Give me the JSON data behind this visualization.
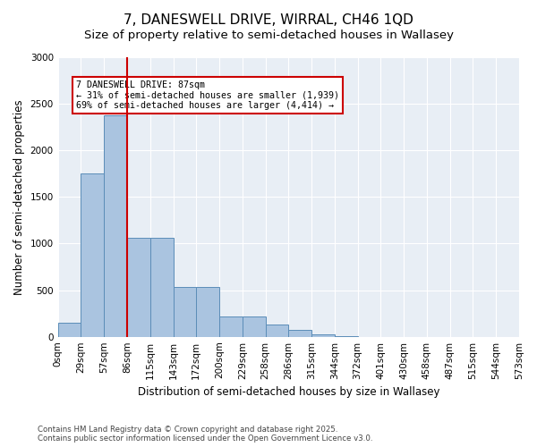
{
  "title_line1": "7, DANESWELL DRIVE, WIRRAL, CH46 1QD",
  "title_line2": "Size of property relative to semi-detached houses in Wallasey",
  "xlabel": "Distribution of semi-detached houses by size in Wallasey",
  "ylabel": "Number of semi-detached properties",
  "bin_labels": [
    "0sqm",
    "29sqm",
    "57sqm",
    "86sqm",
    "115sqm",
    "143sqm",
    "172sqm",
    "200sqm",
    "229sqm",
    "258sqm",
    "286sqm",
    "315sqm",
    "344sqm",
    "372sqm",
    "401sqm",
    "430sqm",
    "458sqm",
    "487sqm",
    "515sqm",
    "544sqm",
    "573sqm"
  ],
  "bar_values": [
    155,
    1750,
    2380,
    1060,
    1060,
    530,
    530,
    220,
    220,
    130,
    75,
    30,
    10,
    0,
    0,
    0,
    0,
    0,
    0,
    0
  ],
  "bar_color": "#aac4e0",
  "bar_edge_color": "#5b8db8",
  "property_line_x": 3,
  "property_size": "87sqm",
  "annotation_text": "7 DANESWELL DRIVE: 87sqm\n← 31% of semi-detached houses are smaller (1,939)\n69% of semi-detached houses are larger (4,414) →",
  "annotation_box_color": "#ffffff",
  "annotation_box_edge": "#cc0000",
  "vline_color": "#cc0000",
  "ylim": [
    0,
    3000
  ],
  "yticks": [
    0,
    500,
    1000,
    1500,
    2000,
    2500,
    3000
  ],
  "background_color": "#e8eef5",
  "footer_text": "Contains HM Land Registry data © Crown copyright and database right 2025.\nContains public sector information licensed under the Open Government Licence v3.0.",
  "title_fontsize": 11,
  "subtitle_fontsize": 9.5,
  "axis_label_fontsize": 8.5,
  "tick_fontsize": 7.5
}
